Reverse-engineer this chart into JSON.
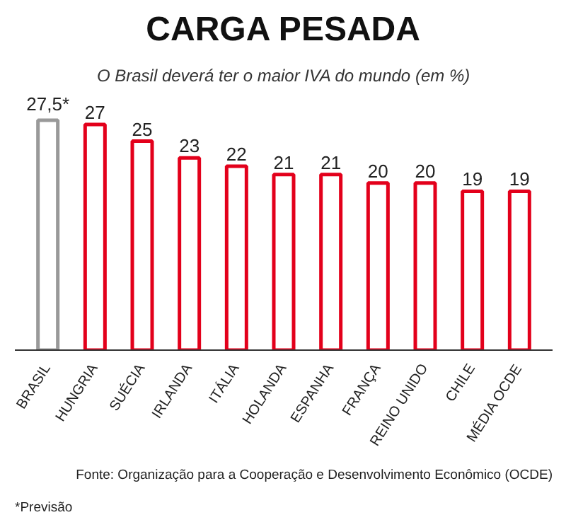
{
  "chart_data": {
    "type": "bar",
    "title": "CARGA PESADA",
    "subtitle": "O Brasil deverá ter o maior IVA do mundo (em %)",
    "categories": [
      "BRASIL",
      "HUNGRIA",
      "SUÉCIA",
      "IRLANDA",
      "ITÁLIA",
      "HOLANDA",
      "ESPANHA",
      "FRANÇA",
      "REINO UNIDO",
      "CHILE",
      "MÉDIA OCDE"
    ],
    "values": [
      27.5,
      27,
      25,
      23,
      22,
      21,
      21,
      20,
      20,
      19,
      19
    ],
    "value_labels": [
      "27,5*",
      "27",
      "25",
      "23",
      "22",
      "21",
      "21",
      "20",
      "20",
      "19",
      "19"
    ],
    "colors": [
      "#999999",
      "#e3001b",
      "#e3001b",
      "#e3001b",
      "#e3001b",
      "#e3001b",
      "#e3001b",
      "#e3001b",
      "#e3001b",
      "#e3001b",
      "#e3001b"
    ],
    "annotations": [
      "*Previsão",
      "Fonte: Organização para a Cooperação e Desenvolvimento Econômico (OCDE)"
    ]
  }
}
